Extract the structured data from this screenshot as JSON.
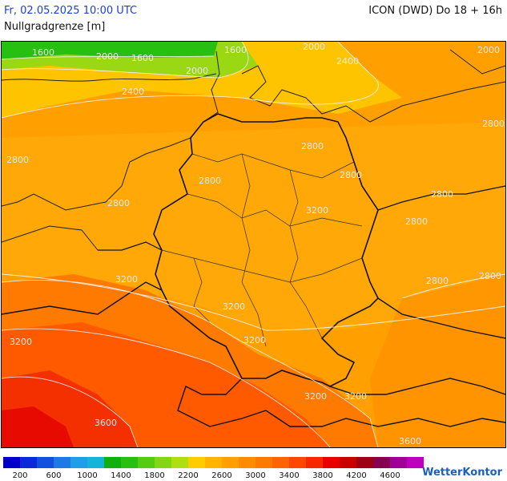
{
  "header": {
    "date": "Fr, 02.05.2025 10:00 UTC",
    "model": "ICON (DWD) Do 18 + 16h",
    "parameter": "Nullgradgrenze [m]"
  },
  "map": {
    "labels": [
      {
        "id": "n1600a",
        "text": "1600"
      },
      {
        "id": "n2000a",
        "text": "2000"
      },
      {
        "id": "n1600b",
        "text": "1600"
      },
      {
        "id": "n1600c",
        "text": "1600"
      },
      {
        "id": "n2000b",
        "text": "2000"
      },
      {
        "id": "n2000c",
        "text": "2000"
      },
      {
        "id": "n2400a",
        "text": "2400"
      },
      {
        "id": "n2000d",
        "text": "2000"
      },
      {
        "id": "n2400b",
        "text": "2400"
      },
      {
        "id": "n2800a",
        "text": "2800"
      },
      {
        "id": "n2800b",
        "text": "2800"
      },
      {
        "id": "n2800c",
        "text": "2800"
      },
      {
        "id": "n2800d",
        "text": "2800"
      },
      {
        "id": "n2800e",
        "text": "2800"
      },
      {
        "id": "n2800f",
        "text": "2800"
      },
      {
        "id": "n2800g",
        "text": "2800"
      },
      {
        "id": "n2800h",
        "text": "2800"
      },
      {
        "id": "n2800i",
        "text": "2800"
      },
      {
        "id": "n2800j",
        "text": "2800"
      },
      {
        "id": "n3200a",
        "text": "3200"
      },
      {
        "id": "n3200b",
        "text": "3200"
      },
      {
        "id": "n3200c",
        "text": "3200"
      },
      {
        "id": "n3200d",
        "text": "3200"
      },
      {
        "id": "n3200e",
        "text": "3200"
      },
      {
        "id": "n3200f",
        "text": "3200"
      },
      {
        "id": "n3200g",
        "text": "3200"
      },
      {
        "id": "n3600a",
        "text": "3600"
      },
      {
        "id": "n3600b",
        "text": "3600"
      }
    ]
  },
  "legend": {
    "colors": [
      "#0000c8",
      "#0a2ad6",
      "#1450e0",
      "#1e78e6",
      "#1e9ee6",
      "#14b4d8",
      "#10b010",
      "#28c010",
      "#55cc10",
      "#82d614",
      "#b0de14",
      "#ffcc00",
      "#ffb400",
      "#ffa000",
      "#ff8c00",
      "#ff7800",
      "#ff6400",
      "#ff4600",
      "#f52800",
      "#e60000",
      "#c80000",
      "#a00014",
      "#880050",
      "#a00096",
      "#be00be"
    ],
    "ticks": [
      "200",
      "600",
      "1000",
      "1400",
      "1800",
      "2200",
      "2600",
      "3000",
      "3400",
      "3800",
      "4200",
      "4600"
    ]
  },
  "brand": "WetterKontor"
}
